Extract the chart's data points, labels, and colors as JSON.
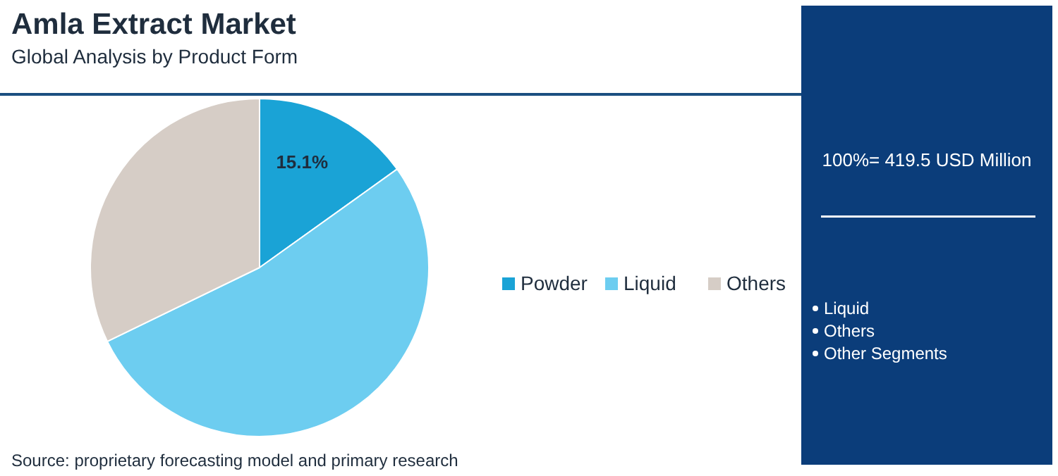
{
  "chart_data": {
    "type": "pie",
    "title": "Amla Extract Market",
    "subtitle": "Global Analysis by Product Form",
    "categories": [
      "Powder",
      "Liquid",
      "Others"
    ],
    "values": [
      15.1,
      52.7,
      32.2
    ],
    "colors": [
      "#1aa3d6",
      "#6dcdf0",
      "#d6cdc6"
    ],
    "value_labels": [
      "15.1%",
      null,
      null
    ],
    "legend": "right",
    "annotations": [
      "100%= 419.5 USD Million",
      "Liquid",
      "Others",
      "Other Segments",
      "Source: proprietary forecasting model and primary research"
    ]
  }
}
